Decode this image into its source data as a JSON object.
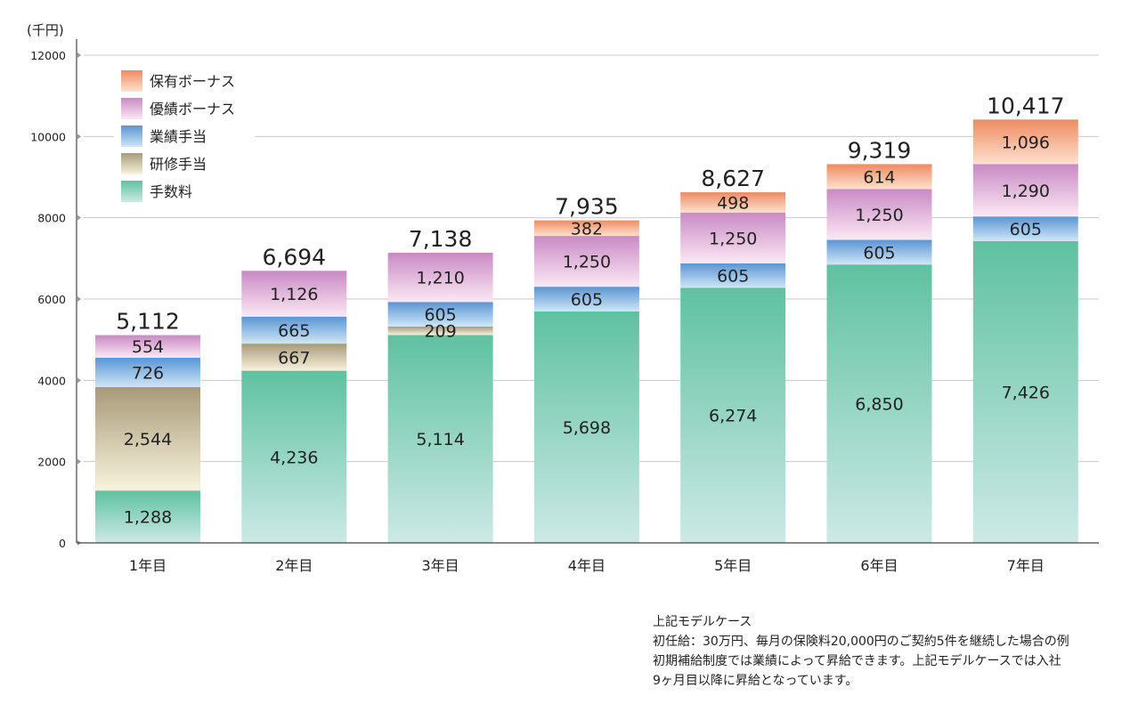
{
  "chart_data": {
    "type": "bar",
    "stacked": true,
    "unit_label": "(千円)",
    "categories": [
      "1年目",
      "2年目",
      "3年目",
      "4年目",
      "5年目",
      "6年目",
      "7年目"
    ],
    "yticks": [
      "0",
      "2000",
      "4000",
      "6000",
      "8000",
      "10000",
      "12000"
    ],
    "ylim": [
      0,
      12000
    ],
    "series": [
      {
        "name": "手数料",
        "values": [
          1288,
          4236,
          5114,
          5698,
          6274,
          6850,
          7426
        ],
        "labels": [
          "1,288",
          "4,236",
          "5,114",
          "5,698",
          "6,274",
          "6,850",
          "7,426"
        ],
        "color_top": "#5fc1a0",
        "color_bottom": "#cde9e6"
      },
      {
        "name": "研修手当",
        "values": [
          2544,
          667,
          209,
          null,
          null,
          null,
          null
        ],
        "labels": [
          "2,544",
          "667",
          "209",
          "",
          "",
          "",
          ""
        ],
        "color_top": "#a89a79",
        "color_bottom": "#f8f3de"
      },
      {
        "name": "業績手当",
        "values": [
          726,
          665,
          605,
          605,
          605,
          605,
          605
        ],
        "labels": [
          "726",
          "665",
          "605",
          "605",
          "605",
          "605",
          "605"
        ],
        "color_top": "#5b95d3",
        "color_bottom": "#cfe6f7"
      },
      {
        "name": "優績ボーナス",
        "values": [
          554,
          1126,
          1210,
          1250,
          1250,
          1250,
          1290
        ],
        "labels": [
          "554",
          "1,126",
          "1,210",
          "1,250",
          "1,250",
          "1,250",
          "1,290"
        ],
        "color_top": "#c88ac4",
        "color_bottom": "#fbe9f3"
      },
      {
        "name": "保有ボーナス",
        "values": [
          null,
          null,
          null,
          382,
          498,
          614,
          1096
        ],
        "labels": [
          "",
          "",
          "",
          "382",
          "498",
          "614",
          "1,096"
        ],
        "color_top": "#ee8b63",
        "color_bottom": "#fde1cf"
      }
    ],
    "totals": [
      "5,112",
      "6,694",
      "7,138",
      "7,935",
      "8,627",
      "9,319",
      "10,417"
    ],
    "legend_order": [
      "保有ボーナス",
      "優績ボーナス",
      "業績手当",
      "研修手当",
      "手数料"
    ],
    "legend_position": "top-left",
    "grid": true
  },
  "note": {
    "title": "上記モデルケース",
    "line1": "初任給：30万円、毎月の保険料20,000円のご契約5件を継続した場合の例",
    "line2": "初期補給制度では業績によって昇給できます。上記モデルケースでは入社",
    "line3": "9ヶ月目以降に昇給となっています。"
  }
}
